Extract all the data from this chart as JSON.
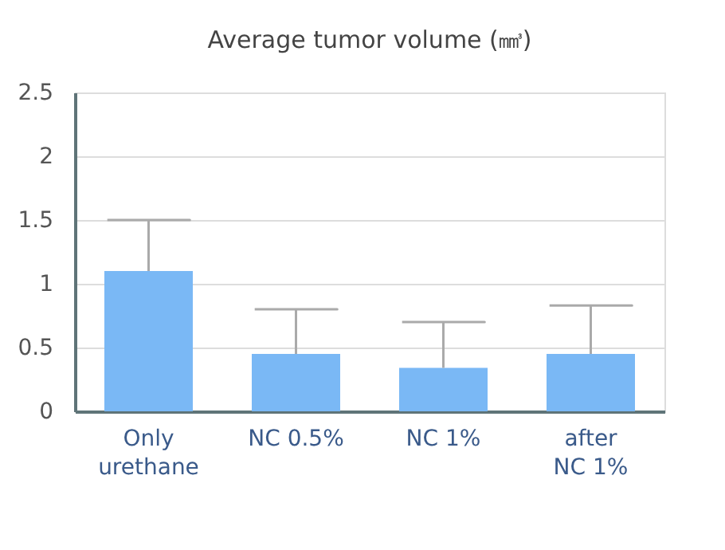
{
  "chart_data": {
    "type": "bar",
    "title": "Average tumor volume (㎣)",
    "categories": [
      "Only urethane",
      "NC 0.5%",
      "NC 1%",
      "after NC 1%"
    ],
    "values": [
      1.1,
      0.45,
      0.34,
      0.45
    ],
    "errors": [
      [
        1.1,
        1.5
      ],
      [
        0.45,
        0.8
      ],
      [
        0.34,
        0.7
      ],
      [
        0.45,
        0.83
      ]
    ],
    "color": "#7ab8f5",
    "ylim": [
      0,
      2.5
    ],
    "yticks": [
      0,
      0.5,
      1,
      1.5,
      2,
      2.5
    ],
    "grid": "y"
  }
}
